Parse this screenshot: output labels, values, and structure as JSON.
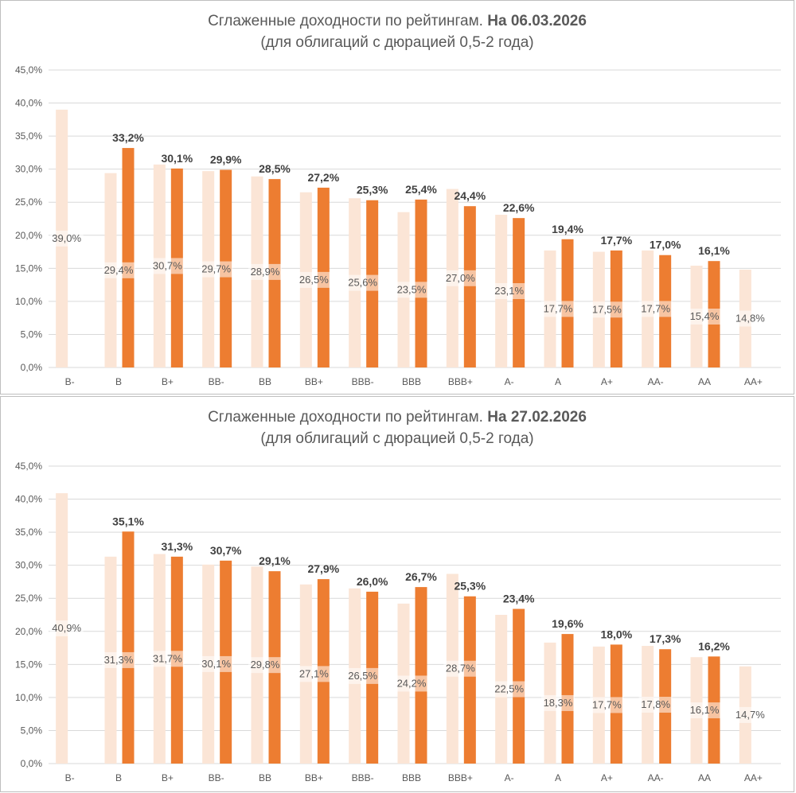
{
  "colors": {
    "light": "#fbe5d6",
    "dark": "#ed7d31",
    "grid": "#d9d9d9",
    "text": "#595959"
  },
  "chart_data": [
    {
      "type": "bar",
      "title_prefix": "Сглаженные доходности по рейтингам.",
      "title_bold": "На 06.03.2026",
      "subtitle": "(для облигаций с дюрацией 0,5-2 года)",
      "ylim": [
        0,
        45
      ],
      "yticks": [
        "0,0%",
        "5,0%",
        "10,0%",
        "15,0%",
        "20,0%",
        "25,0%",
        "30,0%",
        "35,0%",
        "40,0%",
        "45,0%"
      ],
      "categories": [
        "B-",
        "B",
        "B+",
        "BB-",
        "BB",
        "BB+",
        "BBB-",
        "BBB",
        "BBB+",
        "A-",
        "A",
        "A+",
        "AA-",
        "AA",
        "AA+"
      ],
      "series": [
        {
          "name": "light",
          "values": [
            39.0,
            29.4,
            30.7,
            29.7,
            28.9,
            26.5,
            25.6,
            23.5,
            27.0,
            23.1,
            17.7,
            17.5,
            17.7,
            15.4,
            14.8
          ],
          "labels": [
            "39,0%",
            "29,4%",
            "30,7%",
            "29,7%",
            "28,9%",
            "26,5%",
            "25,6%",
            "23,5%",
            "27,0%",
            "23,1%",
            "17,7%",
            "17,5%",
            "17,7%",
            "15,4%",
            "14,8%"
          ]
        },
        {
          "name": "dark",
          "values": [
            null,
            33.2,
            30.1,
            29.9,
            28.5,
            27.2,
            25.3,
            25.4,
            24.4,
            22.6,
            19.4,
            17.7,
            17.0,
            16.1,
            null
          ],
          "labels": [
            "",
            "33,2%",
            "30,1%",
            "29,9%",
            "28,5%",
            "27,2%",
            "25,3%",
            "25,4%",
            "24,4%",
            "22,6%",
            "19,4%",
            "17,7%",
            "17,0%",
            "16,1%",
            ""
          ]
        }
      ]
    },
    {
      "type": "bar",
      "title_prefix": "Сглаженные доходности по рейтингам.",
      "title_bold": "На 27.02.2026",
      "subtitle": "(для облигаций с дюрацией 0,5-2 года)",
      "ylim": [
        0,
        45
      ],
      "yticks": [
        "0,0%",
        "5,0%",
        "10,0%",
        "15,0%",
        "20,0%",
        "25,0%",
        "30,0%",
        "35,0%",
        "40,0%",
        "45,0%"
      ],
      "categories": [
        "B-",
        "B",
        "B+",
        "BB-",
        "BB",
        "BB+",
        "BBB-",
        "BBB",
        "BBB+",
        "A-",
        "A",
        "A+",
        "AA-",
        "AA",
        "AA+"
      ],
      "series": [
        {
          "name": "light",
          "values": [
            40.9,
            31.3,
            31.7,
            30.1,
            29.8,
            27.1,
            26.5,
            24.2,
            28.7,
            22.5,
            18.3,
            17.7,
            17.8,
            16.1,
            14.7
          ],
          "labels": [
            "40,9%",
            "31,3%",
            "31,7%",
            "30,1%",
            "29,8%",
            "27,1%",
            "26,5%",
            "24,2%",
            "28,7%",
            "22,5%",
            "18,3%",
            "17,7%",
            "17,8%",
            "16,1%",
            "14,7%"
          ]
        },
        {
          "name": "dark",
          "values": [
            null,
            35.1,
            31.3,
            30.7,
            29.1,
            27.9,
            26.0,
            26.7,
            25.3,
            23.4,
            19.6,
            18.0,
            17.3,
            16.2,
            null
          ],
          "labels": [
            "",
            "35,1%",
            "31,3%",
            "30,7%",
            "29,1%",
            "27,9%",
            "26,0%",
            "26,7%",
            "25,3%",
            "23,4%",
            "19,6%",
            "18,0%",
            "17,3%",
            "16,2%",
            ""
          ]
        }
      ]
    }
  ]
}
